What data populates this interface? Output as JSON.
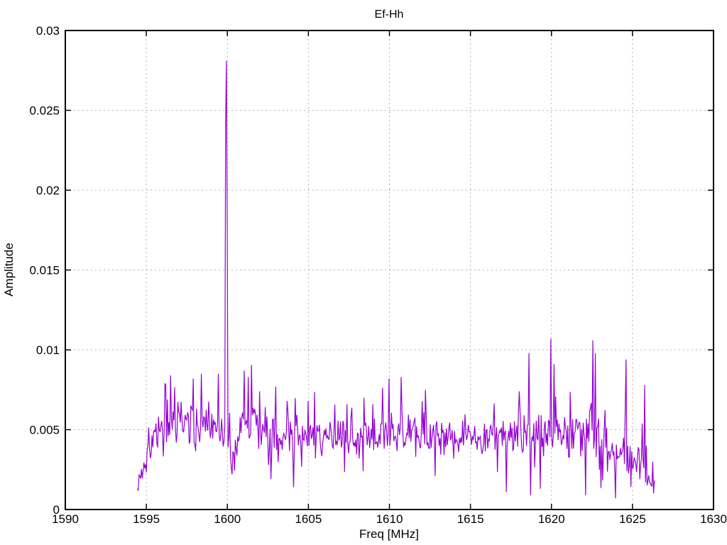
{
  "page": {
    "background": "#ffffff"
  },
  "chart_data": {
    "type": "line",
    "title": "Ef-Hh",
    "xlabel": "Freq [MHz]",
    "ylabel": "Amplitude",
    "xlim": [
      1590,
      1630
    ],
    "ylim": [
      0,
      0.03
    ],
    "xticks": [
      1590,
      1595,
      1600,
      1605,
      1610,
      1615,
      1620,
      1625,
      1630
    ],
    "xtick_labels": [
      "1590",
      "1595",
      "1600",
      "1605",
      "1610",
      "1615",
      "1620",
      "1625",
      "1630"
    ],
    "yticks": [
      0,
      0.005,
      0.01,
      0.015,
      0.02,
      0.025,
      0.03
    ],
    "ytick_labels": [
      "0",
      "0.005",
      "0.01",
      "0.015",
      "0.02",
      "0.025",
      "0.03"
    ],
    "grid": true,
    "grid_style": "dotted",
    "ticks": "inward-mirrored",
    "legend": "none",
    "colors": {
      "line": "#9400d3",
      "grid": "#b0b0b0",
      "axis": "#000000",
      "text": "#000000",
      "background": "#ffffff"
    },
    "series": [
      {
        "name": "Ef-Hh",
        "x_start": 1594.45,
        "x_end": 1626.35,
        "n_points": 640,
        "noise_seed": 20,
        "envelope_note": "control points [freq_MHz, mean_amplitude, half_spread] of the noise band",
        "envelope": [
          [
            1594.45,
            0.0012,
            0.0008
          ],
          [
            1594.8,
            0.0028,
            0.0012
          ],
          [
            1595.4,
            0.0042,
            0.0014
          ],
          [
            1596.2,
            0.0052,
            0.0016
          ],
          [
            1597.0,
            0.0055,
            0.0016
          ],
          [
            1598.0,
            0.0054,
            0.0017
          ],
          [
            1599.0,
            0.005,
            0.0014
          ],
          [
            1599.8,
            0.0047,
            0.0012
          ],
          [
            1600.3,
            0.0038,
            0.0013
          ],
          [
            1601.0,
            0.0055,
            0.0017
          ],
          [
            1601.6,
            0.0056,
            0.0016
          ],
          [
            1602.5,
            0.0047,
            0.0015
          ],
          [
            1603.5,
            0.0047,
            0.0014
          ],
          [
            1605.0,
            0.0046,
            0.0013
          ],
          [
            1607.0,
            0.0046,
            0.0013
          ],
          [
            1609.0,
            0.0047,
            0.0014
          ],
          [
            1610.5,
            0.0051,
            0.0016
          ],
          [
            1612.0,
            0.0049,
            0.0015
          ],
          [
            1613.5,
            0.0045,
            0.0013
          ],
          [
            1615.0,
            0.0044,
            0.0012
          ],
          [
            1616.5,
            0.0044,
            0.0013
          ],
          [
            1618.0,
            0.0048,
            0.0017
          ],
          [
            1619.5,
            0.0049,
            0.0019
          ],
          [
            1621.0,
            0.0047,
            0.0016
          ],
          [
            1622.5,
            0.0051,
            0.0018
          ],
          [
            1623.5,
            0.004,
            0.0016
          ],
          [
            1624.5,
            0.0033,
            0.0014
          ],
          [
            1625.5,
            0.003,
            0.0013
          ],
          [
            1626.25,
            0.0013,
            0.0008
          ]
        ],
        "peaks_note": "prominent spikes [freq_MHz, amplitude] read off the plot",
        "peaks": [
          [
            1596.2,
            0.0078
          ],
          [
            1596.5,
            0.0084
          ],
          [
            1597.9,
            0.0082
          ],
          [
            1598.4,
            0.0085
          ],
          [
            1599.45,
            0.0085
          ],
          [
            1599.9,
            0.0242
          ],
          [
            1599.95,
            0.0281
          ],
          [
            1600.0,
            0.0176
          ],
          [
            1601.05,
            0.0087
          ],
          [
            1601.3,
            0.0083
          ],
          [
            1602.0,
            0.0074
          ],
          [
            1603.0,
            0.0077
          ],
          [
            1605.0,
            0.0068
          ],
          [
            1607.4,
            0.0066
          ],
          [
            1609.0,
            0.0066
          ],
          [
            1610.0,
            0.0082
          ],
          [
            1610.7,
            0.0083
          ],
          [
            1612.2,
            0.0075
          ],
          [
            1618.0,
            0.0074
          ],
          [
            1618.6,
            0.0098
          ],
          [
            1619.95,
            0.0107
          ],
          [
            1620.15,
            0.0091
          ],
          [
            1622.55,
            0.0106
          ],
          [
            1622.7,
            0.0098
          ],
          [
            1624.6,
            0.0094
          ],
          [
            1625.75,
            0.0078
          ]
        ],
        "dips_note": "notable low excursions [freq_MHz, amplitude]",
        "dips": [
          [
            1600.3,
            0.0022
          ],
          [
            1602.7,
            0.0019
          ],
          [
            1604.1,
            0.0014
          ],
          [
            1608.4,
            0.0024
          ],
          [
            1612.8,
            0.0021
          ],
          [
            1617.2,
            0.0011
          ],
          [
            1618.7,
            0.0009
          ],
          [
            1619.3,
            0.0013
          ],
          [
            1623.95,
            0.0007
          ],
          [
            1626.3,
            0.001
          ]
        ]
      }
    ]
  }
}
